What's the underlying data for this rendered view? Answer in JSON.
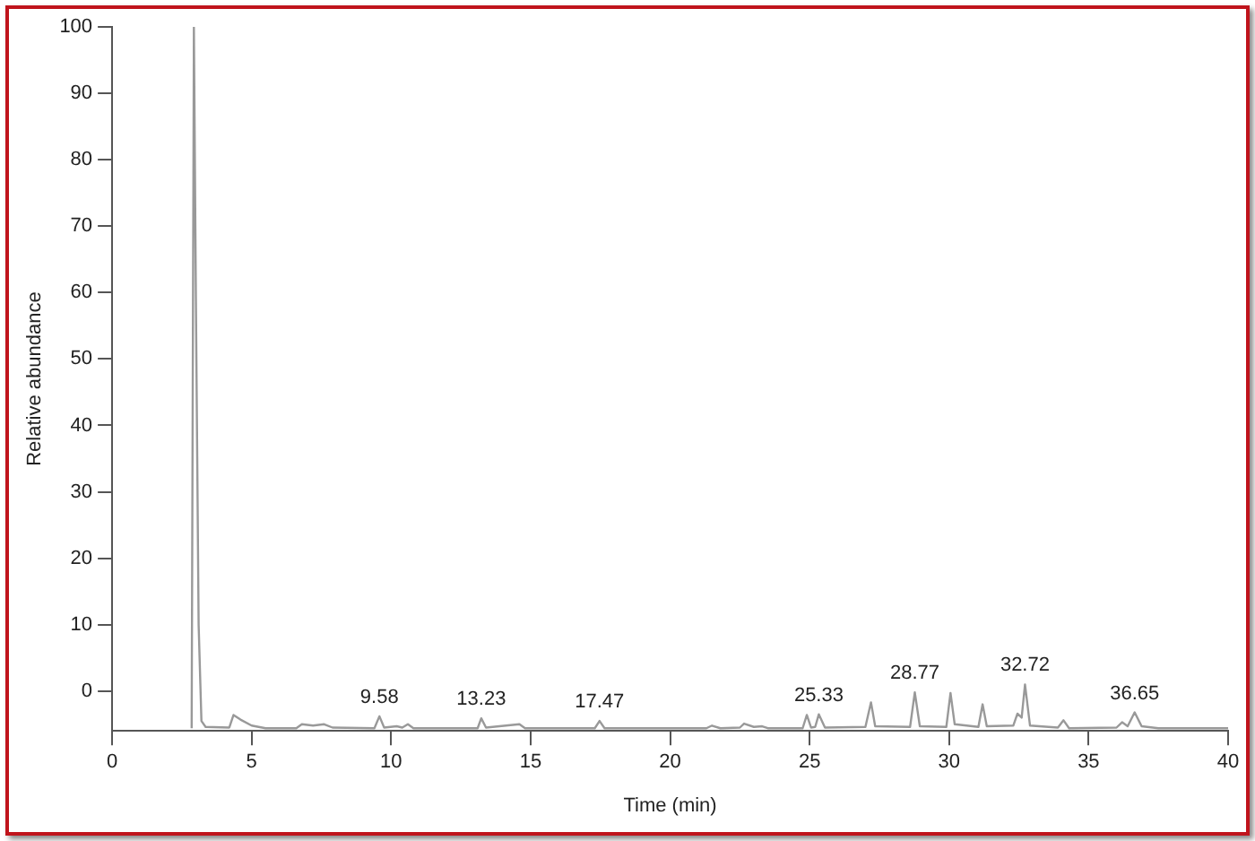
{
  "chart_data": {
    "type": "line",
    "xlabel": "Time (min)",
    "ylabel": "Relative abundance",
    "xlim": [
      0,
      40
    ],
    "xticks": [
      0,
      5,
      10,
      15,
      20,
      25,
      30,
      35,
      40
    ],
    "ylim": [
      -6,
      100
    ],
    "yticks": [
      0,
      10,
      20,
      30,
      40,
      50,
      60,
      70,
      80,
      90,
      100
    ],
    "grid": false,
    "legend": false,
    "marker": "none",
    "line_style": "solid",
    "series": [
      {
        "color": "#999999",
        "x": [
          2.85,
          2.93,
          3.0,
          3.1,
          3.2,
          3.35,
          4.2,
          4.35,
          4.6,
          5.0,
          5.5,
          6.6,
          6.8,
          7.2,
          7.6,
          7.9,
          9.4,
          9.58,
          9.75,
          10.2,
          10.4,
          10.6,
          10.8,
          13.1,
          13.23,
          13.4,
          14.6,
          14.8,
          17.3,
          17.47,
          17.65,
          21.3,
          21.5,
          21.8,
          22.5,
          22.65,
          23.0,
          23.3,
          23.5,
          24.75,
          24.9,
          25.05,
          25.2,
          25.33,
          25.55,
          27.0,
          27.2,
          27.35,
          28.6,
          28.77,
          28.95,
          29.9,
          30.05,
          30.2,
          31.05,
          31.2,
          31.35,
          32.3,
          32.45,
          32.6,
          32.72,
          32.9,
          33.9,
          34.1,
          34.3,
          36.0,
          36.2,
          36.4,
          36.65,
          36.9,
          37.5,
          40
        ],
        "values": [
          -5.6,
          100,
          60,
          10,
          -4.5,
          -5.4,
          -5.5,
          -3.6,
          -4.3,
          -5.2,
          -5.6,
          -5.6,
          -5.0,
          -5.2,
          -5.0,
          -5.5,
          -5.6,
          -3.8,
          -5.5,
          -5.3,
          -5.5,
          -5.0,
          -5.6,
          -5.6,
          -4.1,
          -5.5,
          -5.0,
          -5.6,
          -5.6,
          -4.5,
          -5.6,
          -5.6,
          -5.2,
          -5.6,
          -5.5,
          -4.9,
          -5.4,
          -5.3,
          -5.6,
          -5.6,
          -3.6,
          -5.5,
          -5.4,
          -3.5,
          -5.5,
          -5.4,
          -1.7,
          -5.3,
          -5.4,
          -0.2,
          -5.3,
          -5.4,
          -0.3,
          -5.0,
          -5.4,
          -2.0,
          -5.3,
          -5.2,
          -3.4,
          -4.0,
          1.0,
          -5.2,
          -5.5,
          -4.4,
          -5.6,
          -5.5,
          -4.7,
          -5.3,
          -3.2,
          -5.3,
          -5.6,
          -5.6
        ]
      }
    ],
    "annotations": [
      {
        "text": "9.58",
        "x": 9.58,
        "y": -3.8
      },
      {
        "text": "13.23",
        "x": 13.23,
        "y": -4.1
      },
      {
        "text": "17.47",
        "x": 17.47,
        "y": -4.5
      },
      {
        "text": "25.33",
        "x": 25.33,
        "y": -3.5
      },
      {
        "text": "28.77",
        "x": 28.77,
        "y": -0.2
      },
      {
        "text": "32.72",
        "x": 32.72,
        "y": 1.0
      },
      {
        "text": "36.65",
        "x": 36.65,
        "y": -3.2
      }
    ]
  }
}
